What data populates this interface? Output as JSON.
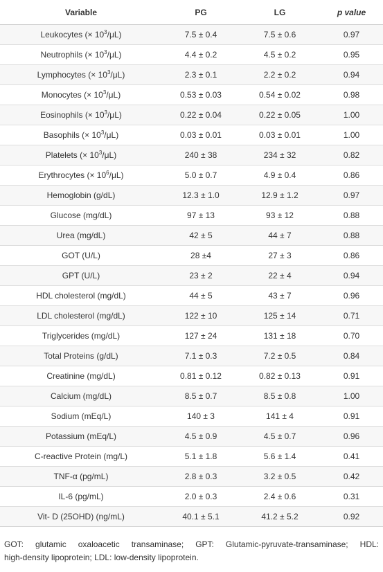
{
  "table": {
    "headers": {
      "variable": "Variable",
      "pg": "PG",
      "lg": "LG",
      "p_value": "p value"
    },
    "rows": [
      {
        "label": "Leukocytes (× 10",
        "sup": "3",
        "unit_end": "/μL)",
        "pg": "7.5 ± 0.4",
        "lg": "7.5 ± 0.6",
        "p": "0.97"
      },
      {
        "label": "Neutrophils (× 10",
        "sup": "3",
        "unit_end": "/μL)",
        "pg": "4.4 ± 0.2",
        "lg": "4.5 ± 0.2",
        "p": "0.95"
      },
      {
        "label": "Lymphocytes (× 10",
        "sup": "3",
        "unit_end": "/μL)",
        "pg": "2.3 ± 0.1",
        "lg": "2.2 ± 0.2",
        "p": "0.94"
      },
      {
        "label": "Monocytes (× 10",
        "sup": "3",
        "unit_end": "/μL)",
        "pg": "0.53 ± 0.03",
        "lg": "0.54 ± 0.02",
        "p": "0.98"
      },
      {
        "label": "Eosinophils (× 10",
        "sup": "3",
        "unit_end": "/μL)",
        "pg": "0.22 ± 0.04",
        "lg": "0.22 ± 0.05",
        "p": "1.00"
      },
      {
        "label": "Basophils (× 10",
        "sup": "3",
        "unit_end": "/μL)",
        "pg": "0.03 ± 0.01",
        "lg": "0.03 ± 0.01",
        "p": "1.00"
      },
      {
        "label": "Platelets (× 10",
        "sup": "3",
        "unit_end": "/μL)",
        "pg": "240 ± 38",
        "lg": "234 ± 32",
        "p": "0.82"
      },
      {
        "label": "Erythrocytes (× 10",
        "sup": "6",
        "unit_end": "/μL)",
        "pg": "5.0 ± 0.7",
        "lg": "4.9 ± 0.4",
        "p": "0.86"
      },
      {
        "label": "Hemoglobin (g/dL)",
        "sup": "",
        "unit_end": "",
        "pg": "12.3 ± 1.0",
        "lg": "12.9 ± 1.2",
        "p": "0.97"
      },
      {
        "label": "Glucose (mg/dL)",
        "sup": "",
        "unit_end": "",
        "pg": "97 ± 13",
        "lg": "93 ± 12",
        "p": "0.88"
      },
      {
        "label": "Urea (mg/dL)",
        "sup": "",
        "unit_end": "",
        "pg": "42 ± 5",
        "lg": "44 ± 7",
        "p": "0.88"
      },
      {
        "label": "GOT (U/L)",
        "sup": "",
        "unit_end": "",
        "pg": "28 ±4",
        "lg": "27 ± 3",
        "p": "0.86"
      },
      {
        "label": "GPT (U/L)",
        "sup": "",
        "unit_end": "",
        "pg": "23 ± 2",
        "lg": "22 ± 4",
        "p": "0.94"
      },
      {
        "label": "HDL cholesterol (mg/dL)",
        "sup": "",
        "unit_end": "",
        "pg": "44 ± 5",
        "lg": "43 ± 7",
        "p": "0.96"
      },
      {
        "label": "LDL cholesterol (mg/dL)",
        "sup": "",
        "unit_end": "",
        "pg": "122 ± 10",
        "lg": "125 ± 14",
        "p": "0.71"
      },
      {
        "label": "Triglycerides (mg/dL)",
        "sup": "",
        "unit_end": "",
        "pg": "127 ± 24",
        "lg": "131 ± 18",
        "p": "0.70"
      },
      {
        "label": "Total Proteins (g/dL)",
        "sup": "",
        "unit_end": "",
        "pg": "7.1 ± 0.3",
        "lg": "7.2 ± 0.5",
        "p": "0.84"
      },
      {
        "label": "Creatinine (mg/dL)",
        "sup": "",
        "unit_end": "",
        "pg": "0.81 ± 0.12",
        "lg": "0.82 ± 0.13",
        "p": "0.91"
      },
      {
        "label": "Calcium (mg/dL)",
        "sup": "",
        "unit_end": "",
        "pg": "8.5 ± 0.7",
        "lg": "8.5 ± 0.8",
        "p": "1.00"
      },
      {
        "label": "Sodium (mEq/L)",
        "sup": "",
        "unit_end": "",
        "pg": "140 ± 3",
        "lg": "141 ± 4",
        "p": "0.91"
      },
      {
        "label": "Potassium (mEq/L)",
        "sup": "",
        "unit_end": "",
        "pg": "4.5 ± 0.9",
        "lg": "4.5 ± 0.7",
        "p": "0.96"
      },
      {
        "label": "C-reactive Protein (mg/L)",
        "sup": "",
        "unit_end": "",
        "pg": "5.1 ± 1.8",
        "lg": "5.6 ± 1.4",
        "p": "0.41"
      },
      {
        "label": "TNF-α (pg/mL)",
        "sup": "",
        "unit_end": "",
        "pg": "2.8 ± 0.3",
        "lg": "3.2 ± 0.5",
        "p": "0.42"
      },
      {
        "label": "IL-6 (pg/mL)",
        "sup": "",
        "unit_end": "",
        "pg": "2.0 ± 0.3",
        "lg": "2.4 ± 0.6",
        "p": "0.31"
      },
      {
        "label": "Vit- D (25OHD) (ng/mL)",
        "sup": "",
        "unit_end": "",
        "pg": "40.1 ± 5.1",
        "lg": "41.2 ± 5.2",
        "p": "0.92"
      }
    ]
  },
  "footnote": {
    "line1": "GOT: glutamic oxaloacetic transaminase; GPT: Glutamic-pyruvate-transaminase; HDL:",
    "line2": "high-density lipoprotein; LDL: low-density lipoprotein."
  },
  "colors": {
    "text": "#333333",
    "row_stripe": "#f7f7f7",
    "row_border": "#dddddd"
  }
}
